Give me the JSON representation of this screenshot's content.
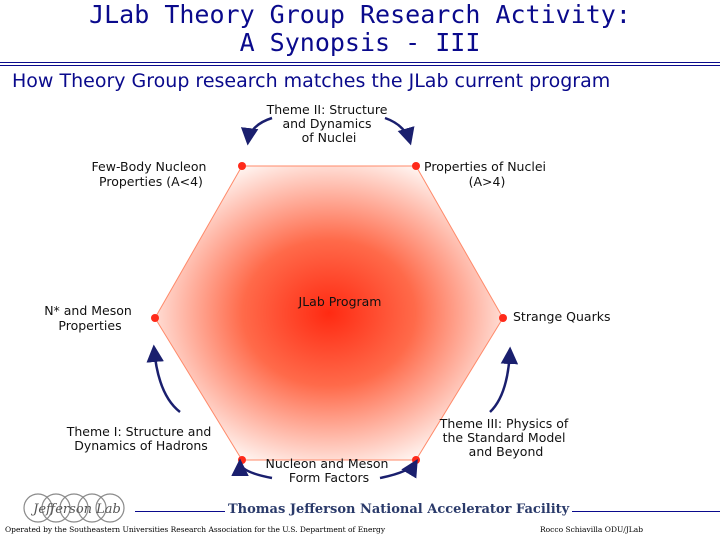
{
  "slide": {
    "title_line1": "JLab Theory Group Research Activity:",
    "title_line2": "A Synopsis - III",
    "subtitle": "How Theory Group research matches the JLab current program"
  },
  "diagram": {
    "center_label": "JLab Program",
    "colors": {
      "accent": "#ff2a1a",
      "arrow": "#1a1f6e",
      "title": "#0a0a8c"
    },
    "vertex_labels": {
      "top_left": [
        "Few-Body Nucleon",
        "Properties (A<4)"
      ],
      "top_right": [
        "Properties of Nuclei",
        "(A>4)"
      ],
      "left": [
        "N* and Meson",
        "Properties"
      ],
      "right": [
        "Strange Quarks"
      ],
      "bottom": [
        "Nucleon and Meson",
        "Form Factors"
      ]
    },
    "theme_labels": {
      "theme2": [
        "Theme II: Structure",
        "and Dynamics",
        "of Nuclei"
      ],
      "theme1": [
        "Theme I: Structure and",
        "Dynamics of Hadrons"
      ],
      "theme3": [
        "Theme III: Physics of",
        "the Standard Model",
        "and Beyond"
      ]
    }
  },
  "footer": {
    "logo_text": "Jefferson Lab",
    "facility": "Thomas Jefferson National Accelerator Facility",
    "operated_by": "Operated by the Southeastern Universities Research Association for the U.S. Department of Energy",
    "author": "Rocco Schiavilla ODU/JLab"
  }
}
